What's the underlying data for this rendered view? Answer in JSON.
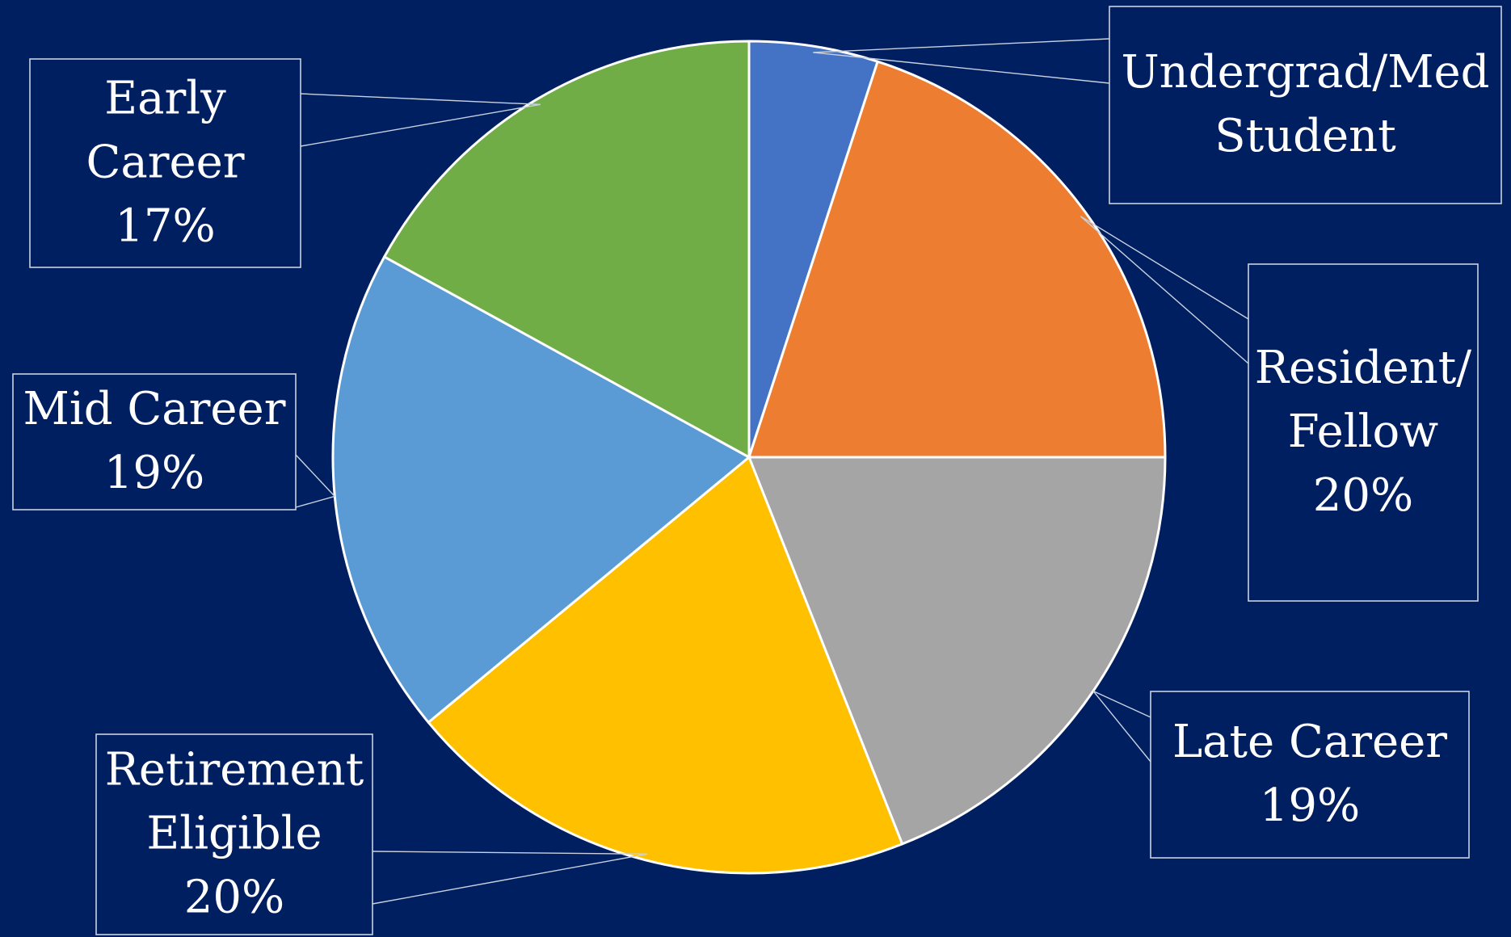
{
  "chart_data": {
    "type": "pie",
    "title": "",
    "legend": "none",
    "slices": [
      {
        "name": "Undergrad/Med Student",
        "value": 5,
        "label_lines": [
          "Undergrad/Med",
          "Student"
        ],
        "color": "#4472c4"
      },
      {
        "name": "Resident/Fellow",
        "value": 20,
        "label_lines": [
          "Resident/",
          "Fellow",
          "20%"
        ],
        "color": "#ed7d31"
      },
      {
        "name": "Late Career",
        "value": 19,
        "label_lines": [
          "Late Career",
          "19%"
        ],
        "color": "#a5a5a5"
      },
      {
        "name": "Retirement Eligible",
        "value": 20,
        "label_lines": [
          "Retirement",
          "Eligible",
          "20%"
        ],
        "color": "#ffc000"
      },
      {
        "name": "Mid Career",
        "value": 19,
        "label_lines": [
          "Mid Career",
          "19%"
        ],
        "color": "#5b9bd5"
      },
      {
        "name": "Early Career",
        "value": 17,
        "label_lines": [
          "Early",
          "Career",
          "17%"
        ],
        "color": "#70ad47"
      }
    ]
  }
}
